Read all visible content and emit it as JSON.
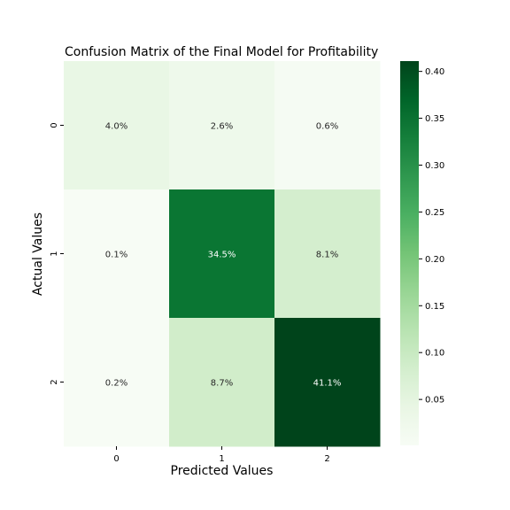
{
  "chart_data": {
    "type": "heatmap",
    "title": "Confusion Matrix of the Final Model for Profitability",
    "xlabel": "Predicted Values",
    "ylabel": "Actual Values",
    "x_categories": [
      "0",
      "1",
      "2"
    ],
    "y_categories": [
      "0",
      "1",
      "2"
    ],
    "values": [
      [
        0.04,
        0.026,
        0.006
      ],
      [
        0.001,
        0.345,
        0.081
      ],
      [
        0.002,
        0.087,
        0.411
      ]
    ],
    "cell_labels": [
      [
        "4.0%",
        "2.6%",
        "0.6%"
      ],
      [
        "0.1%",
        "34.5%",
        "8.1%"
      ],
      [
        "0.2%",
        "8.7%",
        "41.1%"
      ]
    ],
    "colormap": "Greens",
    "colorbar": {
      "vmin": 0.001,
      "vmax": 0.411,
      "ticks": [
        "0.05",
        "0.10",
        "0.15",
        "0.20",
        "0.25",
        "0.30",
        "0.35",
        "0.40"
      ],
      "tick_values": [
        0.05,
        0.1,
        0.15,
        0.2,
        0.25,
        0.3,
        0.35,
        0.4
      ]
    },
    "colors": {
      "min": "#f7fcf5",
      "max": "#00441b",
      "light_text": "#ffffff",
      "dark_text": "#262626"
    }
  }
}
